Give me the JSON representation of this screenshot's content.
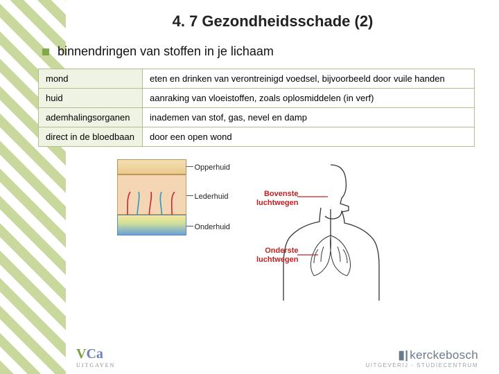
{
  "title": "4. 7 Gezondheidsschade (2)",
  "bullet": "binnendringen van stoffen in je lichaam",
  "table": {
    "border_color": "#aebf8a",
    "key_bg": "#eff3e3",
    "rows": [
      {
        "k": "mond",
        "v": "eten en drinken van verontreinigd voedsel, bijvoorbeeld door vuile handen"
      },
      {
        "k": "huid",
        "v": "aanraking van vloeistoffen, zoals oplosmiddelen (in verf)"
      },
      {
        "k": "ademhalingsorganen",
        "v": "inademen van stof, gas, nevel en damp"
      },
      {
        "k": "direct in de bloedbaan",
        "v": "door een open wond"
      }
    ]
  },
  "skin": {
    "labels": {
      "l1": "Opperhuid",
      "l2": "Lederhuid",
      "l3": "Onderhuid"
    },
    "colors": {
      "l1": "#e9c98a",
      "l2": "#f4d7b2",
      "l3_top": "#f7e79a",
      "l3_bot": "#6aa0d8"
    }
  },
  "airways": {
    "upper": "Bovenste luchtwegen",
    "lower": "Onderste luchtwegen",
    "label_color": "#c02020"
  },
  "footer": {
    "vca": {
      "v": "V",
      "ca": "Ca",
      "sub": "UITGAVEN"
    },
    "kb": {
      "brand": "kerckebosch",
      "sub": "UITGEVERIJ - STUDIECENTRUM"
    }
  },
  "colors": {
    "accent": "#80a94a",
    "stripe": "#c9d99e"
  }
}
